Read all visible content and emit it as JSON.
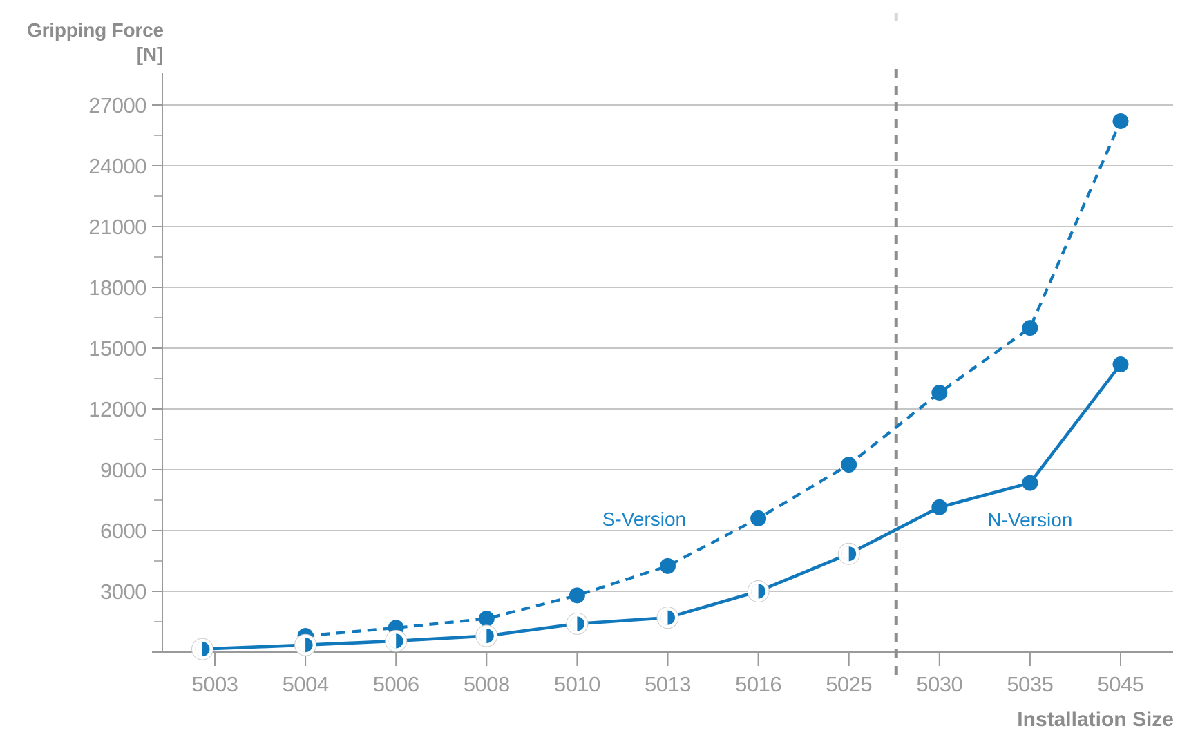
{
  "chart_data": {
    "type": "line",
    "title": "Gripping Force",
    "title_unit": "[N]",
    "xlabel": "Installation Size",
    "grid": "horizontal-only",
    "categories": [
      "5003",
      "5004",
      "5006",
      "5008",
      "5010",
      "5013",
      "5016",
      "5025",
      "5030",
      "5035",
      "5045"
    ],
    "y_axis": {
      "ylim": [
        0,
        28500
      ],
      "ticks": [
        3000,
        6000,
        9000,
        12000,
        15000,
        18000,
        21000,
        24000,
        27000
      ],
      "minor_ticks": [
        1500,
        4500,
        7500,
        10500,
        13500,
        16500,
        19500,
        22500,
        25500
      ]
    },
    "series": [
      {
        "name": "S-Version",
        "line": "dashed",
        "values": [
          null,
          800,
          1200,
          1650,
          2800,
          4250,
          6600,
          9250,
          12800,
          16000,
          26200
        ],
        "markers": [
          "none",
          "filled",
          "filled",
          "filled",
          "filled",
          "filled",
          "filled",
          "filled",
          "filled",
          "filled",
          "filled"
        ]
      },
      {
        "name": "N-Version",
        "line": "solid",
        "values": [
          150,
          350,
          550,
          800,
          1400,
          1700,
          3000,
          4850,
          7150,
          8350,
          14200
        ],
        "markers": [
          "half",
          "half",
          "half",
          "half",
          "half",
          "half",
          "half",
          "half",
          "filled",
          "filled",
          "filled"
        ]
      }
    ],
    "annotations": [
      {
        "text": "S-Version",
        "ci": 4.74,
        "value": 6580
      },
      {
        "text": "N-Version",
        "ci": 9.0,
        "value": 6550
      }
    ],
    "separator": {
      "between": [
        "5025",
        "5030"
      ]
    }
  },
  "colors": {
    "series_blue": "#1278bc",
    "label_blue": "#1984c8",
    "axis_gray": "#9a9a9a",
    "grid_gray": "#b3b3b3",
    "tick_label_gray": "#9c9c9c",
    "title_gray": "#8c8c8c",
    "separator_gray": "#8d8d8d",
    "faint_dash_gray": "#d7d7d7",
    "marker_ring_gray": "#cccccc",
    "background": "#ffffff"
  }
}
